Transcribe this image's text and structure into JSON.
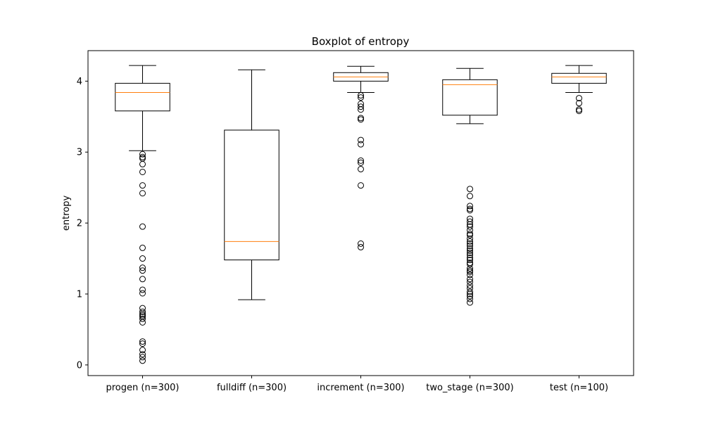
{
  "chart_data": {
    "type": "boxplot",
    "title": "Boxplot of entropy",
    "xlabel": "",
    "ylabel": "entropy",
    "ylim": [
      -0.15,
      4.43
    ],
    "yticks": [
      0,
      1,
      2,
      3,
      4
    ],
    "grid": false,
    "categories": [
      "progen (n=300)",
      "fulldiff (n=300)",
      "increment (n=300)",
      "two_stage (n=300)",
      "test (n=100)"
    ],
    "boxes": [
      {
        "label": "progen (n=300)",
        "whisker_low": 3.02,
        "q1": 3.58,
        "median": 3.84,
        "q3": 3.97,
        "whisker_high": 4.22,
        "outliers": [
          2.97,
          2.93,
          2.91,
          2.83,
          2.72,
          2.53,
          2.42,
          1.95,
          1.65,
          1.5,
          1.37,
          1.33,
          1.21,
          1.06,
          1.01,
          0.8,
          0.75,
          0.72,
          0.7,
          0.68,
          0.65,
          0.6,
          0.33,
          0.3,
          0.21,
          0.15,
          0.11,
          0.06
        ]
      },
      {
        "label": "fulldiff (n=300)",
        "whisker_low": 0.92,
        "q1": 1.48,
        "median": 1.74,
        "q3": 3.31,
        "whisker_high": 4.16,
        "outliers": []
      },
      {
        "label": "increment (n=300)",
        "whisker_low": 3.84,
        "q1": 4.0,
        "median": 4.06,
        "q3": 4.12,
        "whisker_high": 4.21,
        "outliers": [
          3.8,
          3.77,
          3.68,
          3.64,
          3.6,
          3.48,
          3.46,
          3.17,
          3.11,
          2.88,
          2.85,
          2.76,
          2.53,
          1.71,
          1.66
        ]
      },
      {
        "label": "two_stage (n=300)",
        "whisker_low": 3.4,
        "q1": 3.52,
        "median": 3.95,
        "q3": 4.02,
        "whisker_high": 4.18,
        "outliers": [
          2.48,
          2.38,
          2.24,
          2.2,
          2.18,
          2.06,
          2.02,
          1.98,
          1.95,
          1.9,
          1.85,
          1.83,
          1.78,
          1.74,
          1.71,
          1.68,
          1.64,
          1.61,
          1.58,
          1.55,
          1.51,
          1.48,
          1.44,
          1.42,
          1.36,
          1.33,
          1.31,
          1.27,
          1.21,
          1.17,
          1.12,
          1.08,
          1.03,
          1.0,
          0.97,
          0.93,
          0.88
        ]
      },
      {
        "label": "test (n=100)",
        "whisker_low": 3.84,
        "q1": 3.97,
        "median": 4.06,
        "q3": 4.11,
        "whisker_high": 4.22,
        "outliers": [
          3.76,
          3.69,
          3.6,
          3.58
        ]
      }
    ],
    "colors": {
      "box": "#000000",
      "median": "#ff7f0e",
      "outlier": "#000000"
    }
  }
}
